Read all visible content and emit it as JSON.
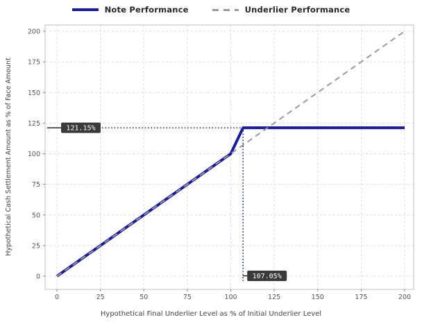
{
  "legend": [
    {
      "label": "Note Performance",
      "style": "solid",
      "color": "#1a1a9e"
    },
    {
      "label": "Underlier Performance",
      "style": "dashed",
      "color": "#9a9a9a"
    }
  ],
  "colors": {
    "grid": "#dcdcdc",
    "border": "#c8c8c8",
    "tick": "#888888",
    "dotted_guide": "#2b3f6e",
    "annotation_bg": "#3a3a3a",
    "annotation_text": "#ffffff"
  },
  "chart_data": {
    "type": "line",
    "title": "",
    "xlabel": "Hypothetical Final Underlier Level as % of Initial Underlier Level",
    "ylabel": "Hypothetical Cash Settlement Amount as % of Face Amount",
    "xlim": [
      0,
      200
    ],
    "ylim": [
      0,
      200
    ],
    "xticks": [
      0,
      25,
      50,
      75,
      100,
      125,
      150,
      175,
      200
    ],
    "yticks": [
      0,
      25,
      50,
      75,
      100,
      125,
      150,
      175,
      200
    ],
    "grid": true,
    "legend_position": "top",
    "series": [
      {
        "name": "Note Performance",
        "color": "#1a1a9e",
        "dash": null,
        "width": 4,
        "points": [
          [
            0,
            0
          ],
          [
            100,
            100
          ],
          [
            107.05,
            121.15
          ],
          [
            200,
            121.15
          ]
        ]
      },
      {
        "name": "Underlier Performance",
        "color": "#9a9a9a",
        "dash": "8,6",
        "width": 2,
        "points": [
          [
            0,
            0
          ],
          [
            200,
            200
          ]
        ]
      }
    ],
    "annotations": [
      {
        "label": "121.15%",
        "axis": "y",
        "value": 121.15,
        "extends_to_x": 107.05
      },
      {
        "label": "107.05%",
        "axis": "x",
        "value": 107.05,
        "extends_to_y": 121.15
      }
    ]
  }
}
